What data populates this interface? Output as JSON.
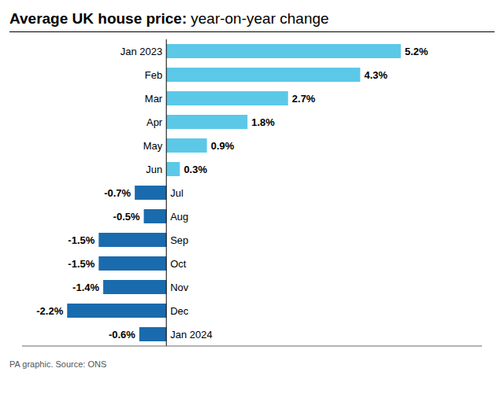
{
  "chart_data": {
    "type": "bar",
    "orientation": "horizontal",
    "title": "Average UK house price:",
    "subtitle": "year-on-year change",
    "annotations": [
      "PA graphic. Source: ONS"
    ],
    "categories": [
      "Jan 2023",
      "Feb",
      "Mar",
      "Apr",
      "May",
      "Jun",
      "Jul",
      "Aug",
      "Sep",
      "Oct",
      "Nov",
      "Dec",
      "Jan 2024"
    ],
    "values": [
      5.2,
      4.3,
      2.7,
      1.8,
      0.9,
      0.3,
      -0.7,
      -0.5,
      -1.5,
      -1.5,
      -1.4,
      -2.2,
      -0.6
    ],
    "value_labels": [
      "5.2%",
      "4.3%",
      "2.7%",
      "1.8%",
      "0.9%",
      "0.3%",
      "-0.7%",
      "-0.5%",
      "-1.5%",
      "-1.5%",
      "-1.4%",
      "-2.2%",
      "-0.6%"
    ],
    "colors": [
      "#5BC8E8",
      "#5BC8E8",
      "#5BC8E8",
      "#5BC8E8",
      "#5BC8E8",
      "#5BC8E8",
      "#1A6BAD",
      "#1A6BAD",
      "#1A6BAD",
      "#1A6BAD",
      "#1A6BAD",
      "#1A6BAD",
      "#1A6BAD"
    ],
    "xlim": [
      -3.2,
      7.0
    ],
    "data_labels": true,
    "tick_labels": false,
    "grid": false
  }
}
